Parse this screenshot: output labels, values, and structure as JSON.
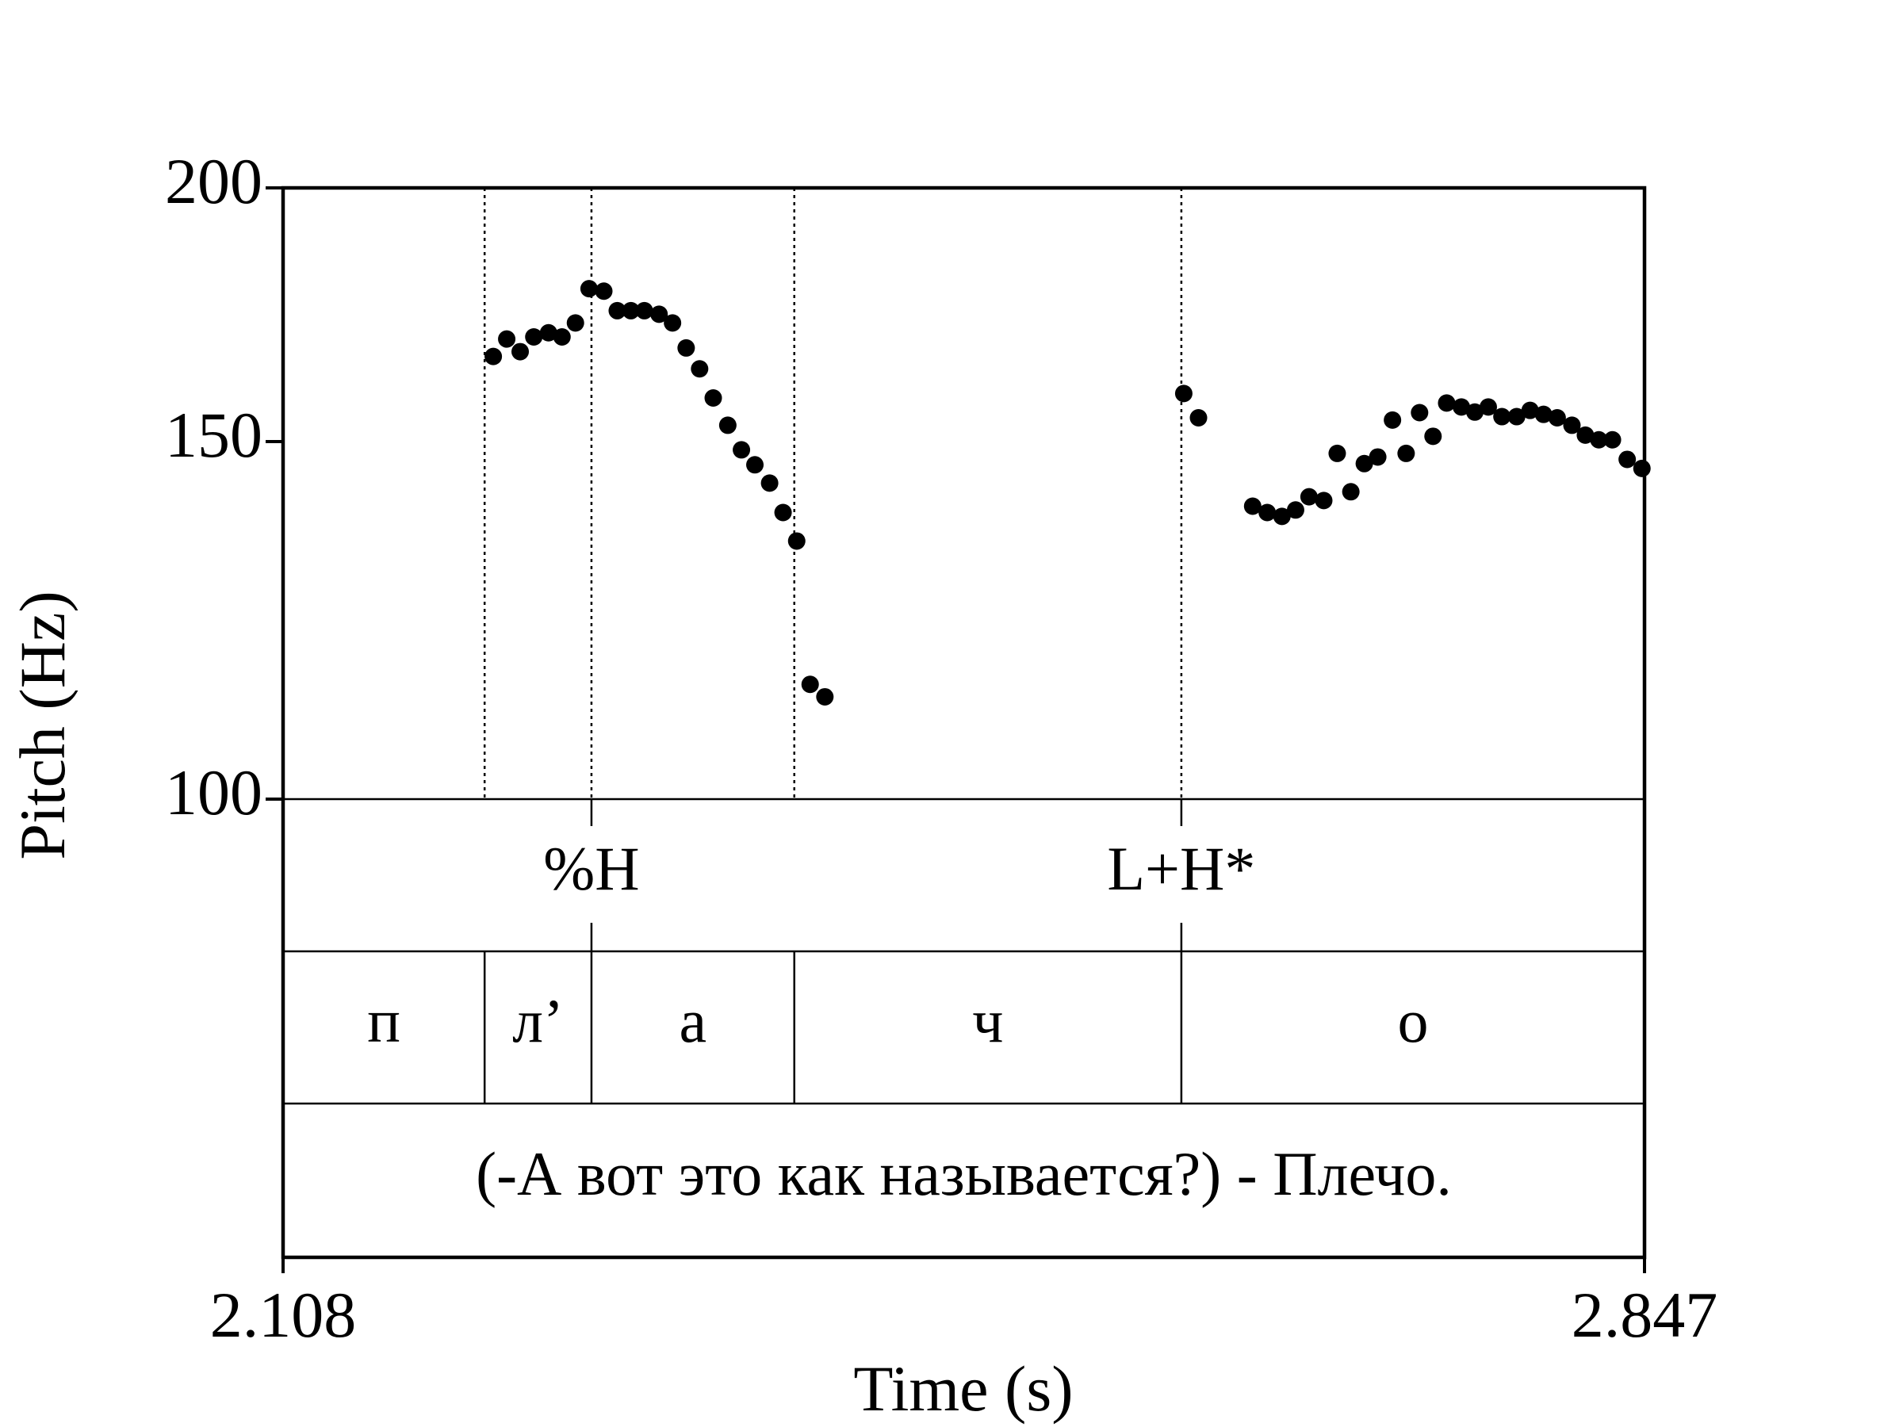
{
  "chart_data": {
    "type": "scatter",
    "y_axis_label": "Pitch (Hz)",
    "x_axis_label": "Time (s)",
    "color": "#000000",
    "log_scale": true,
    "xlim": [
      2.108,
      2.847
    ],
    "xticks": [
      2.108,
      2.847
    ],
    "ylim": [
      100,
      200
    ],
    "yticks": [
      100,
      150,
      200
    ],
    "x": [
      2.2221,
      2.2294,
      2.2367,
      2.2441,
      2.2521,
      2.2594,
      2.2667,
      2.2741,
      2.2821,
      2.2894,
      2.2968,
      2.3041,
      2.3121,
      2.3194,
      2.3268,
      2.3341,
      2.3415,
      2.3494,
      2.3568,
      2.3641,
      2.3721,
      2.3794,
      2.3868,
      2.3941,
      2.4021,
      2.5969,
      2.6049,
      2.6343,
      2.6422,
      2.6502,
      2.6576,
      2.6649,
      2.6729,
      2.6802,
      2.6876,
      2.6949,
      2.7022,
      2.7102,
      2.7176,
      2.7249,
      2.7322,
      2.7396,
      2.7476,
      2.7549,
      2.7622,
      2.7696,
      2.7776,
      2.7849,
      2.7922,
      2.7996,
      2.8076,
      2.8149,
      2.8222,
      2.8296,
      2.8376,
      2.8456
    ],
    "values": [
      165.2,
      168.5,
      166.1,
      168.9,
      169.7,
      168.9,
      171.6,
      178.4,
      177.9,
      174.0,
      174.0,
      174.0,
      173.3,
      171.6,
      166.8,
      162.9,
      157.6,
      152.8,
      148.6,
      146.1,
      143.1,
      138.4,
      134.0,
      113.9,
      112.3,
      158.4,
      154.1,
      139.4,
      138.4,
      137.8,
      138.8,
      140.9,
      140.3,
      148.0,
      141.7,
      146.3,
      147.4,
      153.7,
      148.0,
      155.0,
      150.9,
      156.7,
      156.0,
      155.1,
      156.0,
      154.3,
      154.3,
      155.4,
      154.7,
      154.1,
      152.8,
      151.1,
      150.3,
      150.3,
      147.0,
      145.5
    ],
    "tiers": [
      {
        "points": [
          {
            "time": 2.2754,
            "label": "%H"
          },
          {
            "time": 2.5956,
            "label": "L+H*"
          }
        ]
      },
      {
        "intervals": [
          {
            "start": 2.108,
            "end": 2.2174,
            "label": "п"
          },
          {
            "start": 2.2174,
            "end": 2.2754,
            "label": "л’"
          },
          {
            "start": 2.2754,
            "end": 2.3855,
            "label": "а"
          },
          {
            "start": 2.3855,
            "end": 2.5956,
            "label": "ч"
          },
          {
            "start": 2.5956,
            "end": 2.847,
            "label": "о"
          }
        ]
      },
      {
        "intervals": [
          {
            "start": 2.108,
            "end": 2.847,
            "label": "(-А вот это как называется?) - Плечо."
          }
        ]
      }
    ]
  }
}
